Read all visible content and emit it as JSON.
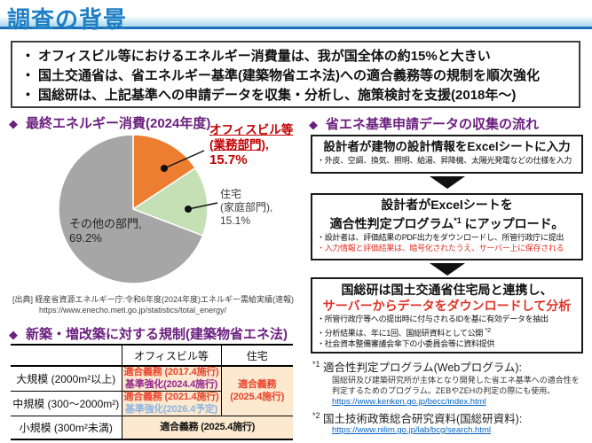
{
  "icons": {
    "diamond": "◆",
    "bullet": "・"
  },
  "header": {
    "title": "調査の背景"
  },
  "summary_box": {
    "bullets": [
      "オフィスビル等におけるエネルギー消費量は、我が国全体の約15%と大きい",
      "国土交通省は、省エネルギー基準(建築物省エネ法)への適合義務等の規制を順次強化",
      "国総研は、上記基準への申請データを収集・分析し、施策検討を支援(2018年～)"
    ]
  },
  "chart_data": {
    "type": "pie",
    "title": "最終エネルギー消費(2024年度)",
    "labels": [
      "オフィスビル等(業務部門)",
      "住宅(家庭部門)",
      "その他の部門"
    ],
    "values": [
      15.7,
      15.1,
      69.2
    ],
    "colors": [
      "#ed7d31",
      "#c5e0b4",
      "#a6a6a6"
    ],
    "start_angle_deg": 0,
    "direction": "clockwise",
    "legend_position": "callout-labels"
  },
  "energy_section": {
    "heading": "最終エネルギー消費(2024年度)",
    "office_label": {
      "line1": "オフィスビル等",
      "line2": "(業務部門),",
      "line3": "15.7%"
    },
    "home_label": {
      "line1": "住宅",
      "line2": "(家庭部門),",
      "line3": "15.1%"
    },
    "other_label": {
      "line1": "その他の部門,",
      "line2": "69.2%"
    },
    "source_line1": "[出典] 経産省資源エネルギー庁:令和6年度(2024年度)エネルギー需給実績(速報)",
    "source_line2": "https://www.enecho.meti.go.jp/statistics/total_energy/"
  },
  "regulation_section": {
    "heading": "新築・増改築に対する規制(建築物省エネ法)",
    "table": {
      "col_headers": [
        "",
        "オフィスビル等",
        "住宅"
      ],
      "rows": [
        {
          "label": "大規模 (2000m²以上)",
          "office": [
            "適合義務 (2017.4施行)",
            "基準強化(2024.4施行)"
          ],
          "housing": [
            "適合義務",
            "(2025.4施行)"
          ]
        },
        {
          "label": "中規模 (300～2000m²)",
          "office": [
            "適合義務 (2021.4施行)",
            "基準強化(2026.4予定)"
          ]
        },
        {
          "label": "小規模 (300m²未満)",
          "both": "適合義務 (2025.4施行)"
        }
      ]
    }
  },
  "flow_section": {
    "heading": "省エネ基準申請データの収集の流れ",
    "box1": {
      "title": "設計者が建物の設計情報をExcelシートに入力",
      "note1": "・外皮、空調、換気、照明、給湯、昇降機、太陽光発電などの仕様を入力"
    },
    "box2": {
      "title_line1": "設計者がExcelシートを",
      "title_line2_pre": "適合性判定プログラム",
      "title_line2_sup": "*1",
      "title_line2_post": " にアップロード。",
      "note1": "・設計者は、評価結果のPDF出力をダウンロードし、所管行政庁に提出",
      "note2": "・入力情報と評価結果は、暗号化されたうえ、サーバー上に保存される"
    },
    "box3": {
      "title_line1": "国総研は国土交通省住宅局と連携し、",
      "title_line2": "サーバーからデータをダウンロードして分析",
      "note1": "・所管行政庁等への提出時に付与されるIDを基に有効データを抽出",
      "note2_pre": "・分析結果は、年に1回、国総研資料として公開 ",
      "note2_sup": "*2",
      "note3": "・社会資本整備審議会傘下の小委員会等に資料提供"
    }
  },
  "footnotes": {
    "fn1_marker": "*1",
    "fn1_title": "適合性判定プログラム(Webプログラム):",
    "fn1_body": "国総研及び建築研究所が主体となり開発した省エネ基準への適合性を判定するためのプログラム。ZEBやZEHの判定の際にも使用。",
    "fn1_link": "https://www.kenken.go.jp/becc/index.html",
    "fn2_marker": "*2",
    "fn2_title": "国土技術政策総合研究資料(国総研資料):",
    "fn2_link": "https://www.nilim.go.jp/lab/bcg/search.html"
  },
  "colors": {
    "title_blue": "#1e7fc4",
    "band_blue": "#a9d7f0",
    "heading_purple": "#6b1f7e",
    "callout_red": "#c00000",
    "table_red": "#e8432c",
    "table_purple": "#93278f",
    "table_lightblue": "#8db4e3",
    "table_cell_bg": "#fce9cf",
    "link_blue": "#0563c1",
    "pie_orange": "#ed7d31",
    "pie_green": "#c5e0b4",
    "pie_gray": "#a6a6a6"
  }
}
